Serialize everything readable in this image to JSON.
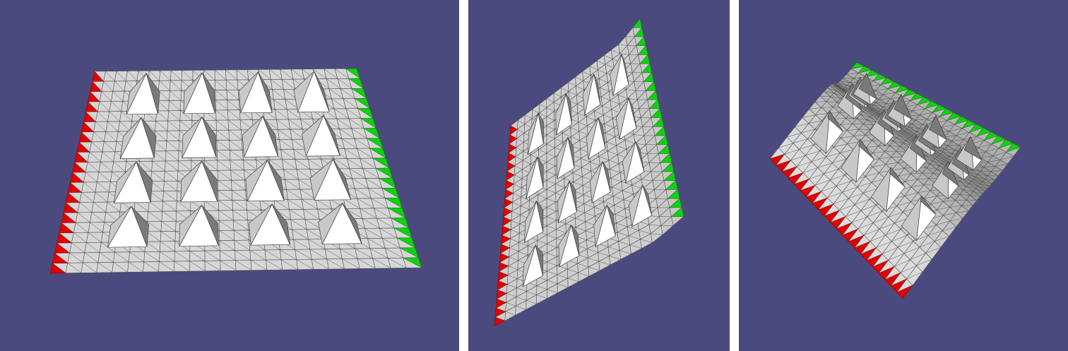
{
  "colors": {
    "background": "#4b4a7e",
    "separator": "#ffffff",
    "mesh_fill": "#d8d8d8",
    "mesh_line": "#555555",
    "pyramid_light": "#ffffff",
    "pyramid_mid": "#c8c8c8",
    "pyramid_dark": "#7a7a7a",
    "fixed_edge": "#e00000",
    "loaded_edge": "#10d010"
  },
  "panels": [
    {
      "name": "flat-sheet",
      "pyramid_rows": 4,
      "pyramid_cols": 4
    },
    {
      "name": "folded-sheet",
      "pyramid_rows": 4,
      "pyramid_cols": 4
    },
    {
      "name": "curved-sheet",
      "pyramid_rows": 4,
      "pyramid_cols": 4
    }
  ]
}
